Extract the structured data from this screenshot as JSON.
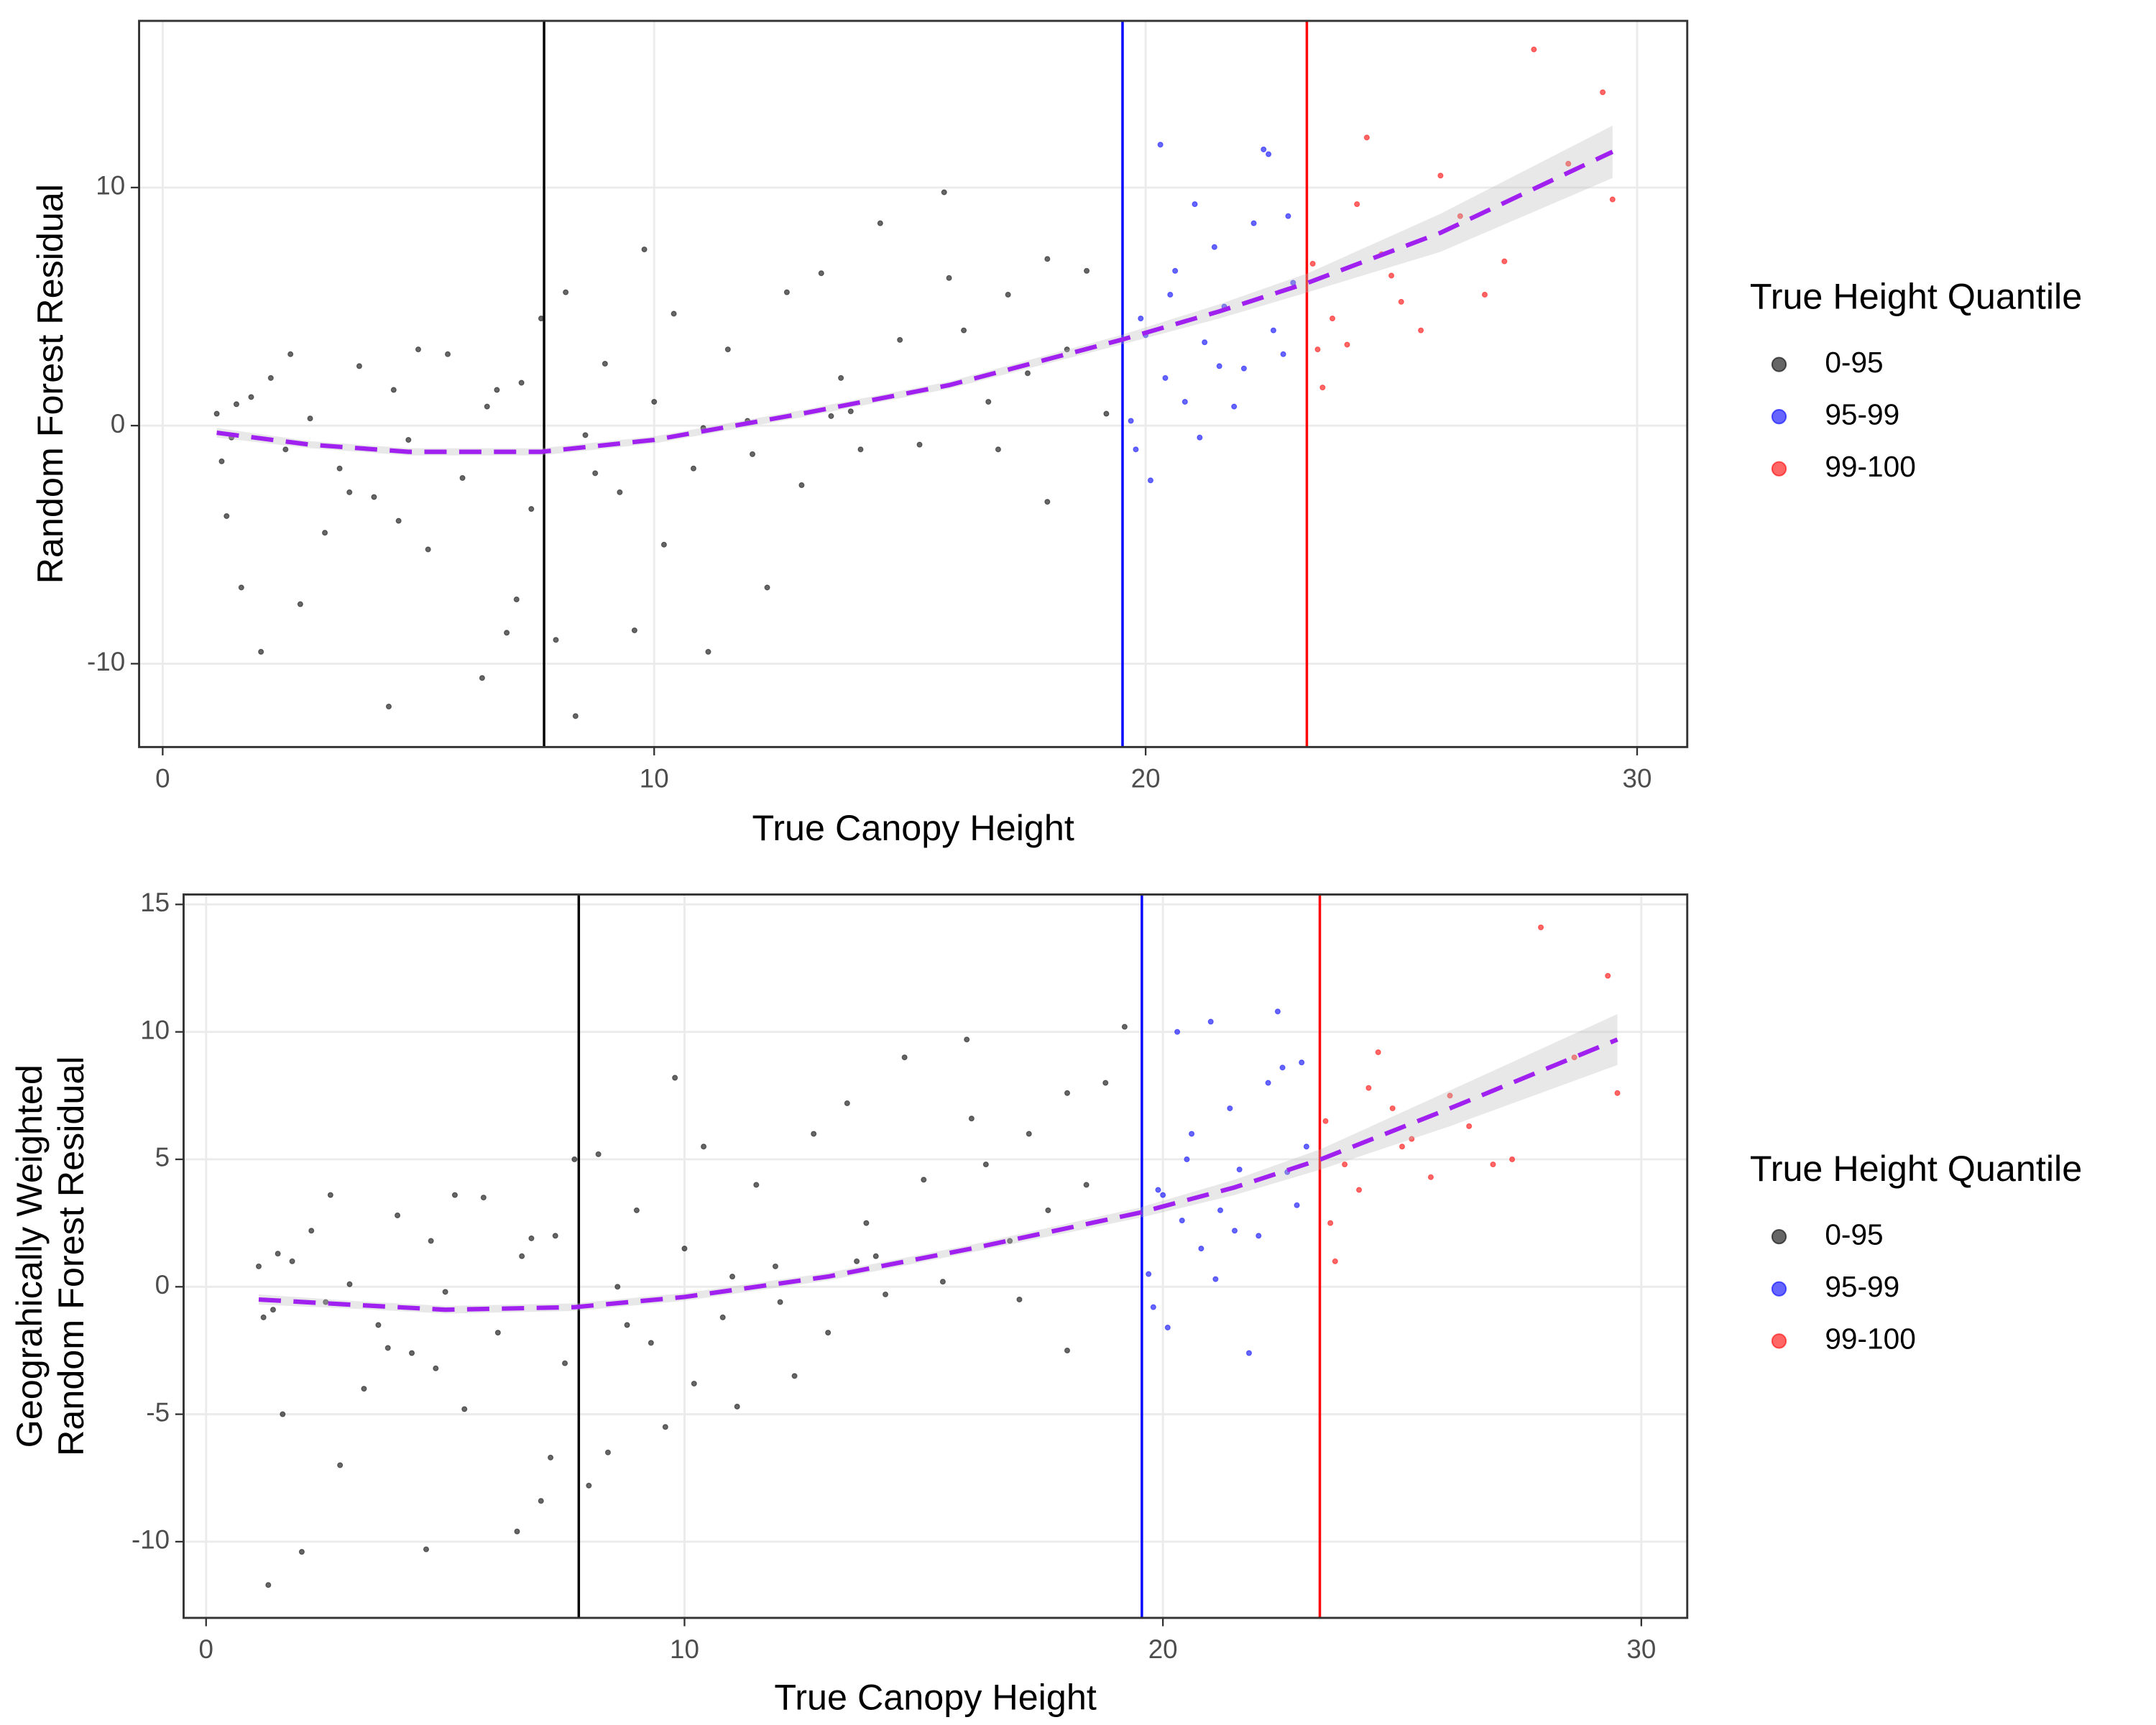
{
  "chart_data": [
    {
      "type": "scatter",
      "xlabel": "True Canopy Height",
      "ylabel": [
        "Random Forest Residual"
      ],
      "xlim": [
        -0.48,
        31.02
      ],
      "ylim": [
        -13.5,
        17.0
      ],
      "xticks": [
        0,
        10,
        20,
        30
      ],
      "yticks": [
        -10,
        0,
        10
      ],
      "grid": true,
      "legend_title": "True Height Quantile",
      "legend": "right",
      "alpha": 0.6,
      "series": [
        {
          "name": "0-95",
          "color": "#000000",
          "x": [
            1.1,
            1.2,
            1.3,
            1.5,
            1.6,
            1.8,
            2.0,
            2.2,
            2.5,
            2.8,
            3.0,
            3.3,
            3.6,
            4.0,
            4.3,
            4.6,
            4.7,
            5.0,
            5.4,
            5.8,
            6.1,
            6.5,
            6.6,
            7.0,
            7.3,
            7.5,
            7.7,
            8.0,
            8.2,
            8.4,
            8.6,
            9.0,
            9.3,
            9.6,
            10.0,
            10.4,
            10.8,
            11.1,
            11.5,
            11.9,
            12.3,
            12.7,
            13.0,
            13.4,
            13.8,
            14.2,
            14.6,
            15.0,
            15.4,
            15.9,
            16.3,
            16.8,
            17.2,
            17.6,
            18.0,
            18.4,
            18.8,
            19.2,
            1.4,
            2.6,
            3.8,
            5.2,
            6.8,
            8.8,
            10.2,
            12.0,
            14.0,
            16.0,
            18.0,
            9.8,
            11.0,
            4.8,
            7.2,
            13.6,
            17.0
          ],
          "y": [
            0.5,
            -1.5,
            -3.8,
            0.9,
            -6.8,
            1.2,
            -9.5,
            2.0,
            -1.0,
            -7.5,
            0.3,
            -4.5,
            -1.8,
            2.5,
            -3.0,
            -11.8,
            1.5,
            -0.6,
            -5.2,
            3.0,
            -2.2,
            -10.6,
            0.8,
            -8.7,
            1.8,
            -3.5,
            4.5,
            -9.0,
            5.6,
            -12.2,
            -0.4,
            2.6,
            -2.8,
            -8.6,
            1.0,
            4.7,
            -1.8,
            -9.5,
            3.2,
            0.2,
            -6.8,
            5.6,
            -2.5,
            6.4,
            2.0,
            -1.0,
            8.5,
            3.6,
            -0.8,
            9.8,
            4.0,
            1.0,
            5.5,
            2.2,
            7.0,
            3.2,
            6.5,
            0.5,
            -0.5,
            3.0,
            -2.8,
            3.2,
            1.5,
            -2.0,
            -5.0,
            -1.2,
            0.6,
            6.2,
            -3.2,
            7.4,
            -0.1,
            -4.0,
            -7.3,
            0.4,
            -1.0
          ]
        },
        {
          "name": "95-99",
          "color": "#0000ff",
          "x": [
            19.7,
            19.9,
            20.1,
            20.3,
            20.4,
            20.6,
            20.8,
            21.0,
            21.2,
            21.4,
            21.6,
            21.8,
            22.0,
            22.2,
            22.4,
            22.6,
            22.8,
            23.0,
            19.8,
            20.5,
            21.5,
            22.5,
            20.0,
            21.1,
            22.9
          ],
          "y": [
            0.2,
            4.5,
            -2.3,
            11.8,
            2.0,
            6.5,
            1.0,
            9.3,
            3.5,
            7.5,
            5.0,
            0.8,
            2.4,
            8.5,
            11.6,
            4.0,
            3.0,
            6.0,
            -1.0,
            5.5,
            2.5,
            11.4,
            3.8,
            -0.5,
            8.8
          ]
        },
        {
          "name": "99-100",
          "color": "#ff0000",
          "x": [
            23.4,
            23.6,
            23.8,
            24.1,
            24.5,
            24.8,
            25.2,
            25.6,
            26.0,
            26.4,
            26.9,
            27.3,
            27.9,
            28.6,
            29.3,
            29.5,
            23.5,
            24.3,
            25.0
          ],
          "y": [
            6.8,
            1.6,
            4.5,
            3.4,
            12.1,
            7.2,
            5.2,
            4.0,
            10.5,
            8.8,
            5.5,
            6.9,
            15.8,
            11.0,
            14.0,
            9.5,
            3.2,
            9.3,
            6.3
          ]
        }
      ],
      "vlines": [
        {
          "x": 7.76,
          "color": "#000000"
        },
        {
          "x": 19.53,
          "color": "#0000ff"
        },
        {
          "x": 23.28,
          "color": "#ff0000"
        }
      ],
      "trend": {
        "color": "#a020f0",
        "band_color": "#bebebe",
        "x": [
          1.1,
          3,
          5,
          7.7,
          10,
          13,
          16,
          19.5,
          21.5,
          23.3,
          26,
          29.5
        ],
        "y": [
          -0.3,
          -0.8,
          -1.1,
          -1.1,
          -0.6,
          0.5,
          1.7,
          3.6,
          4.8,
          6.0,
          8.1,
          11.5
        ],
        "lower": [
          -0.5,
          -0.95,
          -1.25,
          -1.25,
          -0.75,
          0.35,
          1.55,
          3.4,
          4.5,
          5.6,
          7.3,
          10.4
        ],
        "upper": [
          -0.1,
          -0.65,
          -0.95,
          -0.95,
          -0.45,
          0.65,
          1.85,
          3.8,
          5.1,
          6.4,
          8.9,
          12.6
        ]
      }
    },
    {
      "type": "scatter",
      "xlabel": "True Canopy Height",
      "ylabel": [
        "Geograhically Weighted",
        "Random Forest Residual"
      ],
      "xlim": [
        -0.47,
        30.96
      ],
      "ylim": [
        -12.99,
        15.39
      ],
      "xticks": [
        0,
        10,
        20,
        30
      ],
      "yticks": [
        -10,
        -5,
        0,
        5,
        10,
        15
      ],
      "grid": true,
      "legend_title": "True Height Quantile",
      "legend": "right",
      "alpha": 0.6,
      "series": [
        {
          "name": "0-95",
          "color": "#000000",
          "x": [
            1.1,
            1.2,
            1.3,
            1.5,
            1.6,
            1.8,
            2.0,
            2.2,
            2.5,
            2.8,
            3.0,
            3.3,
            3.6,
            4.0,
            4.3,
            4.6,
            4.7,
            5.0,
            5.4,
            5.8,
            6.1,
            6.5,
            6.6,
            7.0,
            7.3,
            7.5,
            7.7,
            8.0,
            8.2,
            8.4,
            8.6,
            9.0,
            9.3,
            9.6,
            10.0,
            10.4,
            10.8,
            11.1,
            11.5,
            11.9,
            12.3,
            12.7,
            13.0,
            13.4,
            13.8,
            14.2,
            14.6,
            15.0,
            15.4,
            15.9,
            16.3,
            16.8,
            17.2,
            17.6,
            18.0,
            18.4,
            18.8,
            19.2,
            1.4,
            2.6,
            3.8,
            5.2,
            6.8,
            8.8,
            10.2,
            12.0,
            14.0,
            16.0,
            18.0,
            9.8,
            11.0,
            4.8,
            7.2,
            13.6,
            17.0
          ],
          "y": [
            0.8,
            -1.2,
            -11.7,
            1.3,
            -5.0,
            1.0,
            -10.4,
            2.2,
            -0.6,
            -7.0,
            0.1,
            -4.0,
            -1.5,
            2.8,
            -2.6,
            -10.3,
            1.8,
            -0.2,
            -4.8,
            3.5,
            -1.8,
            -9.6,
            1.2,
            -8.4,
            2.0,
            -3.0,
            5.0,
            -7.8,
            5.2,
            -6.5,
            0.0,
            3.0,
            -2.2,
            -5.5,
            1.5,
            5.5,
            -1.2,
            -4.7,
            4.0,
            0.8,
            -3.5,
            6.0,
            -1.8,
            7.2,
            2.5,
            -0.3,
            9.0,
            4.2,
            0.2,
            9.7,
            4.8,
            1.8,
            6.0,
            3.0,
            7.6,
            4.0,
            8.0,
            10.2,
            -0.9,
            3.6,
            -2.4,
            3.6,
            1.9,
            -1.5,
            -3.8,
            -0.6,
            1.2,
            6.6,
            -2.5,
            8.2,
            0.4,
            -3.2,
            -6.7,
            1.0,
            -0.5
          ]
        },
        {
          "name": "95-99",
          "color": "#0000ff",
          "x": [
            19.7,
            19.9,
            20.1,
            20.3,
            20.4,
            20.6,
            20.8,
            21.0,
            21.2,
            21.4,
            21.6,
            21.8,
            22.0,
            22.2,
            22.4,
            22.6,
            22.8,
            23.0,
            19.8,
            20.5,
            21.5,
            22.5,
            20.0,
            21.1,
            22.9
          ],
          "y": [
            0.5,
            3.8,
            -1.6,
            10.0,
            2.6,
            6.0,
            1.5,
            10.4,
            3.0,
            7.0,
            4.6,
            -2.6,
            2.0,
            8.0,
            10.8,
            4.5,
            3.2,
            5.5,
            -0.8,
            5.0,
            2.2,
            8.6,
            3.6,
            0.3,
            8.8
          ]
        },
        {
          "name": "99-100",
          "color": "#ff0000",
          "x": [
            23.4,
            23.6,
            23.8,
            24.1,
            24.5,
            24.8,
            25.2,
            25.6,
            26.0,
            26.4,
            26.9,
            27.3,
            27.9,
            28.6,
            29.3,
            29.5,
            23.5,
            24.3,
            25.0
          ],
          "y": [
            6.5,
            1.0,
            4.8,
            3.8,
            9.2,
            7.0,
            5.8,
            4.3,
            7.5,
            6.3,
            4.8,
            5.0,
            14.1,
            9.0,
            12.2,
            7.6,
            2.5,
            7.8,
            5.5
          ]
        }
      ],
      "vlines": [
        {
          "x": 7.79,
          "color": "#000000"
        },
        {
          "x": 19.56,
          "color": "#0000ff"
        },
        {
          "x": 23.28,
          "color": "#ff0000"
        }
      ],
      "trend": {
        "color": "#a020f0",
        "band_color": "#bebebe",
        "x": [
          1.1,
          3,
          5,
          7.7,
          10,
          13,
          16,
          19.5,
          21.5,
          23.3,
          26,
          29.5
        ],
        "y": [
          -0.5,
          -0.7,
          -0.9,
          -0.8,
          -0.4,
          0.4,
          1.5,
          2.9,
          3.9,
          5.0,
          7.0,
          9.7
        ],
        "lower": [
          -0.7,
          -0.85,
          -1.05,
          -0.95,
          -0.55,
          0.25,
          1.35,
          2.7,
          3.6,
          4.6,
          6.3,
          8.7
        ],
        "upper": [
          -0.3,
          -0.55,
          -0.75,
          -0.65,
          -0.25,
          0.55,
          1.65,
          3.1,
          4.2,
          5.4,
          7.7,
          10.7
        ]
      }
    }
  ]
}
